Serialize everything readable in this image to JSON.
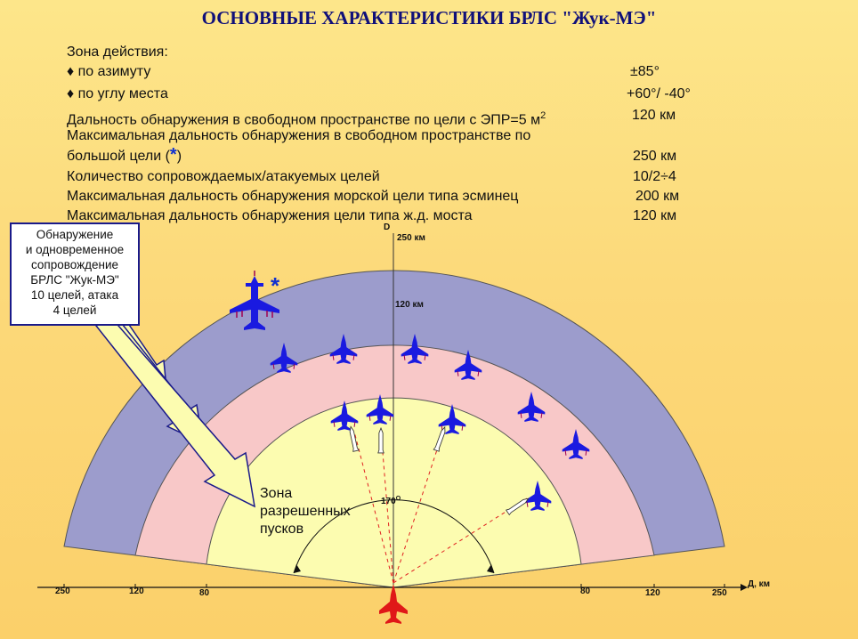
{
  "title": "ОСНОВНЫЕ ХАРАКТЕРИСТИКИ БРЛС \"Жук-МЭ\"",
  "specs": {
    "zone_heading": "Зона действия:",
    "azimuth_label": "по азимуту",
    "azimuth_value": "±85°",
    "elevation_label": "по углу места",
    "elevation_value": "+60°/ -40°",
    "detection_free_label": "Дальность обнаружения в свободном пространстве по цели с ЭПР=5 м",
    "detection_free_sup": "2",
    "detection_free_value": "120 км",
    "max_large_line1": "Максимальная дальность обнаружения  в свободном пространстве по",
    "max_large_line2_pre": "большой цели (",
    "max_large_star": "*",
    "max_large_line2_post": ")",
    "max_large_value": "250 км",
    "targets_label": "Количество сопровождаемых/атакуемых целей",
    "targets_value": "10/2÷4",
    "sea_label": "Максимальная дальность обнаружения морской цели типа эсминец",
    "sea_value": "200 км",
    "bridge_label": "Максимальная дальность обнаружения цели типа ж.д. моста",
    "bridge_value": "120 км"
  },
  "callout": {
    "lines": [
      "Обнаружение",
      "и одновременное",
      "сопровождение",
      "БРЛС \"Жук-МЭ\"",
      "10 целей, атака",
      "4 целей"
    ]
  },
  "zone_label_lines": [
    "Зона",
    "разрешенных",
    "пусков"
  ],
  "diagram": {
    "axis_top_label": "D",
    "axis_right_label": "Д, км",
    "ring_250_label": "250 км",
    "ring_120_label": "120 км",
    "angle_label": "170",
    "angle_sup": "O",
    "ticks_left": [
      "250",
      "120",
      "80"
    ],
    "ticks_right": [
      "80",
      "120",
      "250"
    ],
    "colors": {
      "outer_ring": "#9c9ccc",
      "middle_ring": "#f8c8c8",
      "inner_zone": "#fcfcb0",
      "aircraft": "#1a1ae0",
      "own_aircraft": "#e01818",
      "arrow_fill": "#fcfcb0"
    }
  }
}
